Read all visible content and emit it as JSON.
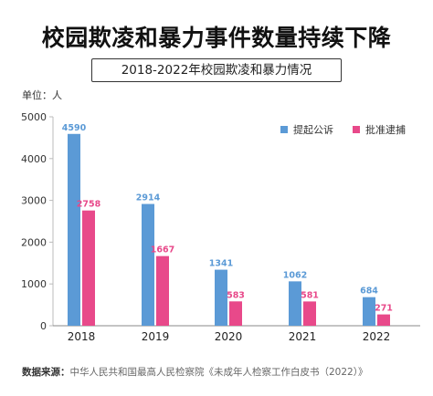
{
  "title": "校园欺凌和暴力事件数量持续下降",
  "subtitle": "2018-2022年校园欺凌和暴力情况",
  "unit_label": "单位：人",
  "source": {
    "label": "数据来源：",
    "text": "中华人民共和国最高人民检察院《未成年人检察工作白皮书（2022）》"
  },
  "colors": {
    "blue": "#5b9ad6",
    "pink": "#e8498a",
    "axis": "#bbbbbb",
    "tick": "#333333"
  },
  "chart_data": {
    "type": "bar",
    "title": "2018-2022年校园欺凌和暴力情况",
    "categories": [
      "2018",
      "2019",
      "2020",
      "2021",
      "2022"
    ],
    "series": [
      {
        "name": "提起公诉",
        "values": [
          4590,
          2914,
          1341,
          1062,
          684
        ],
        "color": "#5b9ad6"
      },
      {
        "name": "批准逮捕",
        "values": [
          2758,
          1667,
          583,
          581,
          271
        ],
        "color": "#e8498a"
      }
    ],
    "ylim": [
      0,
      5000
    ],
    "yticks": [
      0,
      1000,
      2000,
      3000,
      4000,
      5000
    ],
    "ylabel": "单位：人",
    "grid": false,
    "legend": "top-right"
  }
}
